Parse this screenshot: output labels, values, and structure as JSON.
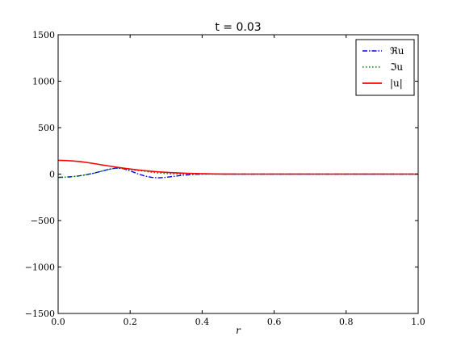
{
  "chart_data": {
    "type": "line",
    "title": "t = 0.03",
    "xlabel": "r",
    "ylabel": "",
    "xlim": [
      0.0,
      1.0
    ],
    "ylim": [
      -1500,
      1500
    ],
    "xticks": [
      0.0,
      0.2,
      0.4,
      0.6,
      0.8,
      1.0
    ],
    "xtick_labels": [
      "0.0",
      "0.2",
      "0.4",
      "0.6",
      "0.8",
      "1.0"
    ],
    "yticks": [
      -1500,
      -1000,
      -500,
      0,
      500,
      1000,
      1500
    ],
    "ytick_labels": [
      "−1500",
      "−1000",
      "−500",
      "0",
      "500",
      "1000",
      "1500"
    ],
    "grid": false,
    "legend_position": "top-right",
    "x": [
      0.0,
      0.02,
      0.04,
      0.06,
      0.08,
      0.1,
      0.12,
      0.14,
      0.16,
      0.18,
      0.2,
      0.22,
      0.24,
      0.26,
      0.28,
      0.3,
      0.32,
      0.34,
      0.36,
      0.38,
      0.4,
      0.42,
      0.44,
      0.46,
      0.48,
      0.5,
      0.55,
      0.6,
      0.7,
      0.8,
      0.9,
      1.0
    ],
    "series": [
      {
        "name": "ℜu",
        "color": "#0000ff",
        "style": "dashdot",
        "values": [
          -35,
          -33,
          -28,
          -18,
          -5,
          10,
          30,
          50,
          65,
          60,
          35,
          5,
          -20,
          -35,
          -40,
          -35,
          -25,
          -15,
          -8,
          -3,
          0,
          1,
          1,
          0,
          0,
          0,
          0,
          0,
          0,
          0,
          0,
          0
        ]
      },
      {
        "name": "ℑu",
        "color": "#008000",
        "style": "dotted",
        "values": [
          -35,
          -33,
          -28,
          -18,
          -5,
          10,
          30,
          50,
          65,
          60,
          50,
          40,
          30,
          20,
          12,
          6,
          2,
          0,
          -1,
          -1,
          0,
          0,
          0,
          0,
          0,
          0,
          0,
          0,
          0,
          0,
          0,
          0
        ]
      },
      {
        "name": "|u|",
        "color": "#ff0000",
        "style": "solid",
        "values": [
          148,
          146,
          142,
          135,
          125,
          113,
          100,
          88,
          76,
          65,
          55,
          45,
          37,
          30,
          24,
          19,
          15,
          11,
          8,
          6,
          4,
          3,
          2,
          1,
          1,
          0,
          0,
          0,
          0,
          0,
          0,
          0
        ]
      }
    ]
  }
}
